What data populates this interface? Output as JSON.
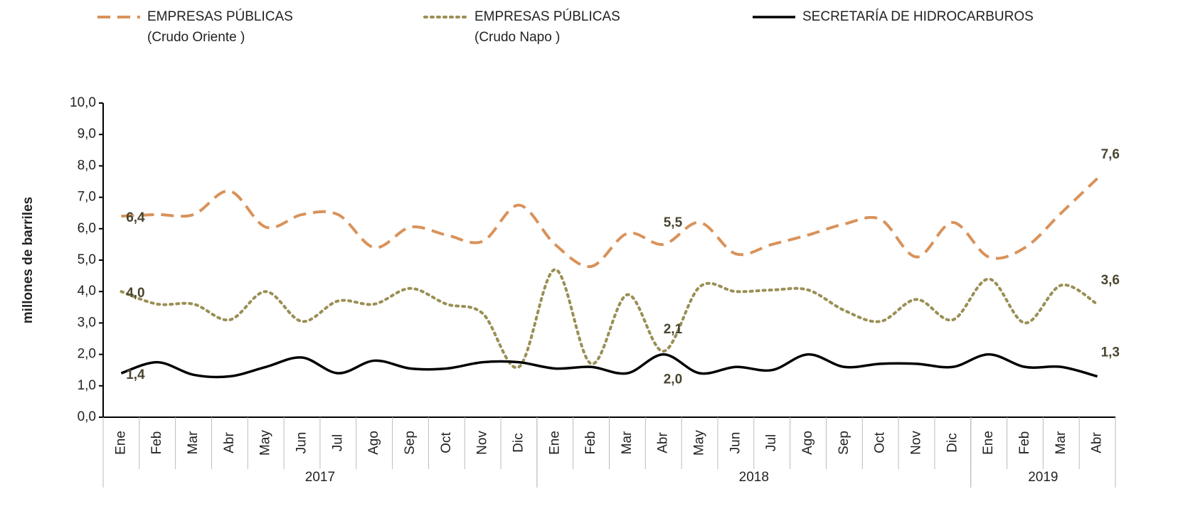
{
  "chart_data": {
    "type": "line",
    "y_label": "millones de barriles",
    "categories": [
      "Ene",
      "Feb",
      "Mar",
      "Abr",
      "May",
      "Jun",
      "Jul",
      "Ago",
      "Sep",
      "Oct",
      "Nov",
      "Dic",
      "Ene",
      "Feb",
      "Mar",
      "Abr",
      "May",
      "Jun",
      "Jul",
      "Ago",
      "Sep",
      "Oct",
      "Nov",
      "Dic",
      "Ene",
      "Feb",
      "Mar",
      "Abr"
    ],
    "groups": [
      {
        "label": "2017",
        "span": 12
      },
      {
        "label": "2018",
        "span": 12
      },
      {
        "label": "2019",
        "span": 4
      }
    ],
    "series": [
      {
        "name": "EMPRESAS PÚBLICAS\n(Crudo Oriente )",
        "color": "#d9925a",
        "dash": "dashed",
        "values": [
          6.4,
          6.45,
          6.45,
          7.2,
          6.05,
          6.45,
          6.45,
          5.4,
          6.05,
          5.8,
          5.6,
          6.75,
          5.5,
          4.8,
          5.85,
          5.5,
          6.2,
          5.2,
          5.5,
          5.8,
          6.15,
          6.3,
          5.1,
          6.2,
          5.1,
          5.4,
          6.5,
          7.6
        ],
        "value_labels": [
          "6,4",
          null,
          null,
          null,
          null,
          null,
          null,
          null,
          null,
          null,
          null,
          null,
          null,
          null,
          null,
          "5,5",
          null,
          null,
          null,
          null,
          null,
          null,
          null,
          null,
          null,
          null,
          null,
          "7,6"
        ]
      },
      {
        "name": "EMPRESAS PÚBLICAS\n(Crudo Napo )",
        "color": "#9a8f55",
        "dash": "dotted",
        "values": [
          4.0,
          3.6,
          3.6,
          3.1,
          4.0,
          3.05,
          3.7,
          3.6,
          4.1,
          3.6,
          3.3,
          1.6,
          4.7,
          1.7,
          3.9,
          2.1,
          4.15,
          4.0,
          4.05,
          4.05,
          3.4,
          3.05,
          3.75,
          3.1,
          4.4,
          3.0,
          4.2,
          3.6
        ],
        "value_labels": [
          "4,0",
          null,
          null,
          null,
          null,
          null,
          null,
          null,
          null,
          null,
          null,
          null,
          null,
          null,
          null,
          "2,1",
          null,
          null,
          null,
          null,
          null,
          null,
          null,
          null,
          null,
          null,
          null,
          "3,6"
        ]
      },
      {
        "name": "SECRETARÍA DE HIDROCARBUROS",
        "color": "#000000",
        "dash": "solid",
        "values": [
          1.4,
          1.75,
          1.35,
          1.3,
          1.6,
          1.9,
          1.4,
          1.8,
          1.55,
          1.55,
          1.75,
          1.75,
          1.55,
          1.6,
          1.4,
          2.0,
          1.4,
          1.6,
          1.5,
          2.0,
          1.6,
          1.7,
          1.7,
          1.6,
          2.0,
          1.6,
          1.6,
          1.3
        ],
        "value_labels": [
          "1,4",
          null,
          null,
          null,
          null,
          null,
          null,
          null,
          null,
          null,
          null,
          null,
          null,
          null,
          null,
          "2,0",
          null,
          null,
          null,
          null,
          null,
          null,
          null,
          null,
          null,
          null,
          null,
          "1,3"
        ]
      }
    ],
    "ylim": [
      0,
      10
    ],
    "yticks": [
      {
        "value": 0,
        "label": "0,0"
      },
      {
        "value": 1,
        "label": "1,0"
      },
      {
        "value": 2,
        "label": "2,0"
      },
      {
        "value": 3,
        "label": "3,0"
      },
      {
        "value": 4,
        "label": "4,0"
      },
      {
        "value": 5,
        "label": "5,0"
      },
      {
        "value": 6,
        "label": "6,0"
      },
      {
        "value": 7,
        "label": "7,0"
      },
      {
        "value": 8,
        "label": "8,0"
      },
      {
        "value": 9,
        "label": "9,0"
      },
      {
        "value": 10,
        "label": "10,0"
      }
    ],
    "grid": false
  }
}
